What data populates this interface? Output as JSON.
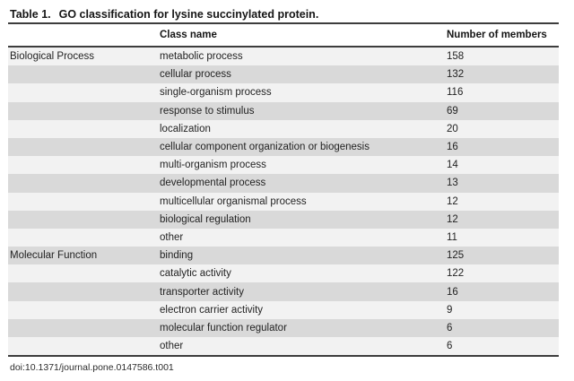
{
  "title": {
    "label": "Table 1.",
    "text": "GO classification for lysine succinylated protein."
  },
  "table": {
    "columns": [
      "",
      "Class name",
      "Number of members"
    ],
    "rows": [
      {
        "group": "Biological Process",
        "class_name": "metabolic process",
        "members": "158"
      },
      {
        "group": "",
        "class_name": "cellular process",
        "members": "132"
      },
      {
        "group": "",
        "class_name": "single-organism process",
        "members": "116"
      },
      {
        "group": "",
        "class_name": "response to stimulus",
        "members": "69"
      },
      {
        "group": "",
        "class_name": "localization",
        "members": "20"
      },
      {
        "group": "",
        "class_name": "cellular component organization or biogenesis",
        "members": "16"
      },
      {
        "group": "",
        "class_name": "multi-organism process",
        "members": "14"
      },
      {
        "group": "",
        "class_name": "developmental process",
        "members": "13"
      },
      {
        "group": "",
        "class_name": "multicellular organismal process",
        "members": "12"
      },
      {
        "group": "",
        "class_name": "biological regulation",
        "members": "12"
      },
      {
        "group": "",
        "class_name": "other",
        "members": "11"
      },
      {
        "group": "Molecular Function",
        "class_name": "binding",
        "members": "125"
      },
      {
        "group": "",
        "class_name": "catalytic activity",
        "members": "122"
      },
      {
        "group": "",
        "class_name": "transporter activity",
        "members": "16"
      },
      {
        "group": "",
        "class_name": "electron carrier activity",
        "members": "9"
      },
      {
        "group": "",
        "class_name": "molecular function regulator",
        "members": "6"
      },
      {
        "group": "",
        "class_name": "other",
        "members": "6"
      }
    ]
  },
  "footer": {
    "doi": "doi:10.1371/journal.pone.0147586.t001"
  },
  "colors": {
    "stripe_light": "#f2f2f2",
    "stripe_dark": "#d9d9d9",
    "rule": "#3d3d3d"
  }
}
